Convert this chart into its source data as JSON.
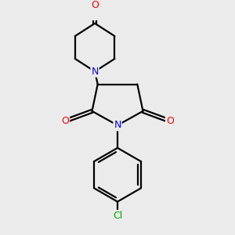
{
  "background_color": "#ebebeb",
  "atom_colors": {
    "N": "#0000ff",
    "O": "#ff0000",
    "Cl": "#00aa00"
  },
  "bond_color": "#000000",
  "bond_width": 1.6,
  "font_size_atom": 9,
  "fig_width": 3.0,
  "fig_height": 3.0,
  "dpi": 100,
  "xlim": [
    0,
    6
  ],
  "ylim": [
    0,
    7.5
  ]
}
